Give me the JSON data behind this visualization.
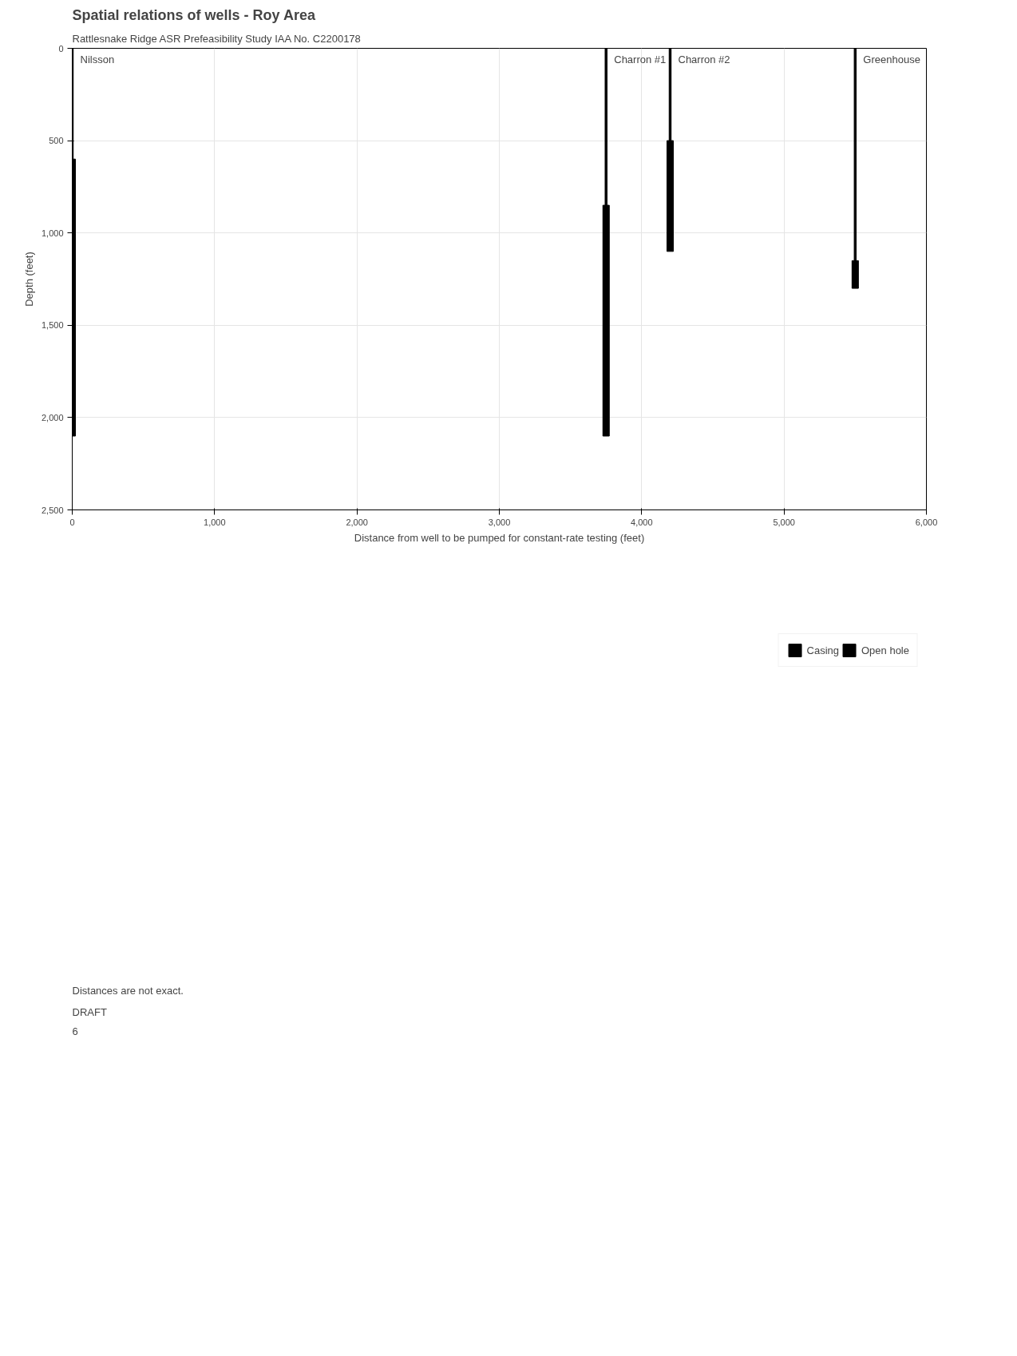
{
  "chart_data": {
    "type": "bar",
    "title": "Spatial relations of wells - Roy Area",
    "subtitle": "Rattlesnake Ridge ASR Prefeasibility Study IAA No. C2200178",
    "xlabel": "Distance from well to be pumped for constant-rate testing (feet)",
    "ylabel": "Depth (feet)",
    "x": [
      0,
      3750,
      4200,
      5500
    ],
    "series": [
      {
        "name": "Casing",
        "color": "#000000",
        "base": [
          0,
          0,
          0,
          0
        ],
        "values": [
          600,
          850,
          500,
          1150
        ]
      },
      {
        "name": "Open hole",
        "color": "#000000",
        "base": [
          600,
          850,
          500,
          1150
        ],
        "values": [
          1500,
          1250,
          600,
          150
        ]
      }
    ],
    "xlim": [
      0,
      6000
    ],
    "ylim": [
      2500,
      0
    ],
    "xticks": [
      0,
      {
        "value": 1000,
        "label": "1,000"
      },
      {
        "value": 2000,
        "label": "2,000"
      },
      {
        "value": 3000,
        "label": "3,000"
      },
      {
        "value": 4000,
        "label": "4,000"
      },
      {
        "value": 5000,
        "label": "5,000"
      },
      {
        "value": 6000,
        "label": "6,000"
      }
    ],
    "yticks": [
      0,
      500,
      {
        "value": 1000,
        "label": "1,000"
      },
      {
        "value": 1500,
        "label": "1,500"
      },
      {
        "value": 2000,
        "label": "2,000"
      },
      {
        "value": 2500,
        "label": "2,500"
      }
    ],
    "grid": true,
    "legend": "bottom",
    "annotations": [
      {
        "text": "Nilsson",
        "x": 0,
        "y": 0
      },
      {
        "text": "Charron #1",
        "x": 3750,
        "y": 0
      },
      {
        "text": "Charron #2",
        "x": 4200,
        "y": 0
      },
      {
        "text": "Greenhouse",
        "x": 5500,
        "y": 0
      },
      "Distances are not exact.",
      "DRAFT",
      "6"
    ]
  }
}
